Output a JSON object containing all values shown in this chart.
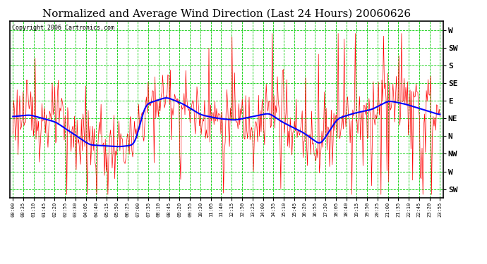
{
  "title": "Normalized and Average Wind Direction (Last 24 Hours) 20060626",
  "copyright": "Copyright 2006 Cartronics.com",
  "background_color": "#ffffff",
  "plot_bg_color": "#ffffff",
  "grid_color": "#00cc00",
  "red_color": "#ff0000",
  "blue_color": "#0000ff",
  "ytick_labels": [
    "W",
    "SW",
    "S",
    "SE",
    "E",
    "NE",
    "N",
    "NW",
    "W",
    "SW"
  ],
  "ytick_values": [
    10,
    9,
    8,
    7,
    6,
    5,
    4,
    3,
    2,
    1
  ],
  "ylim": [
    0.5,
    10.5
  ],
  "xtick_labels": [
    "00:00",
    "00:35",
    "01:10",
    "01:45",
    "02:20",
    "02:55",
    "03:30",
    "04:05",
    "04:40",
    "05:15",
    "05:50",
    "06:25",
    "07:00",
    "07:35",
    "08:10",
    "08:45",
    "09:20",
    "09:55",
    "10:30",
    "11:05",
    "11:40",
    "12:15",
    "12:50",
    "13:25",
    "14:00",
    "14:35",
    "15:10",
    "15:45",
    "16:20",
    "16:55",
    "17:30",
    "18:05",
    "18:40",
    "19:15",
    "19:50",
    "20:25",
    "21:00",
    "21:35",
    "22:10",
    "22:45",
    "23:20",
    "23:55"
  ],
  "title_fontsize": 11,
  "copyright_fontsize": 6,
  "ytick_fontsize": 8,
  "xtick_fontsize": 5,
  "avg_line_keypoints_x": [
    0.0,
    0.04,
    0.1,
    0.18,
    0.25,
    0.285,
    0.31,
    0.36,
    0.4,
    0.44,
    0.48,
    0.52,
    0.56,
    0.6,
    0.63,
    0.68,
    0.72,
    0.76,
    0.8,
    0.84,
    0.88,
    0.92,
    0.96,
    1.0
  ],
  "avg_line_keypoints_y": [
    5.1,
    5.2,
    4.8,
    3.5,
    3.4,
    3.5,
    5.8,
    6.2,
    5.8,
    5.2,
    5.0,
    4.9,
    5.1,
    5.3,
    4.8,
    4.2,
    3.5,
    5.0,
    5.3,
    5.5,
    6.0,
    5.8,
    5.5,
    5.2
  ]
}
